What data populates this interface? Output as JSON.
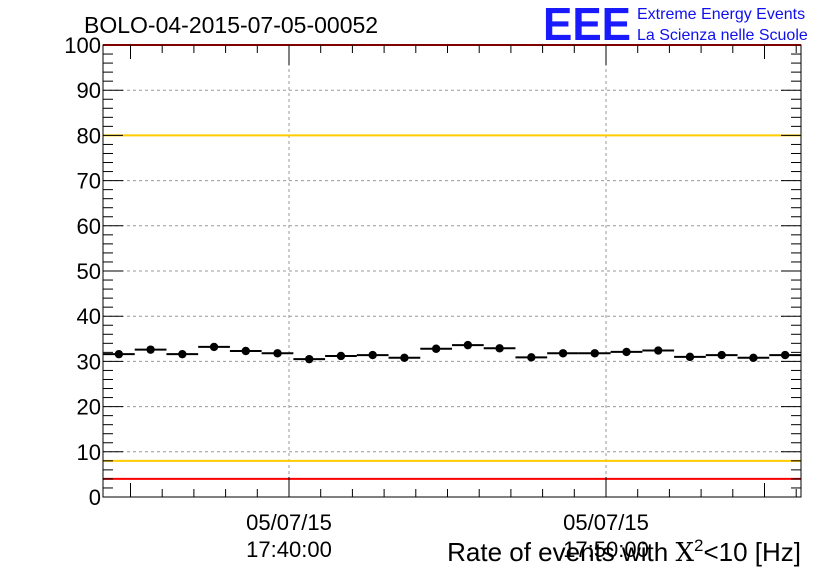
{
  "chart_data": {
    "type": "scatter",
    "title": "BOLO-04-2015-07-05-00052",
    "xlabel": "Rate of events with X²<10 [Hz]",
    "xlabel_parts": {
      "before": "Rate of events with ",
      "symbol": "X",
      "sup": "2",
      "after": "<10 [Hz]"
    },
    "ylim": [
      0,
      100
    ],
    "yticks": [
      "0",
      "10",
      "20",
      "30",
      "40",
      "50",
      "60",
      "70",
      "80",
      "90",
      "100"
    ],
    "xticks": [
      {
        "date": "05/07/15",
        "time": "17:40:00"
      },
      {
        "date": "05/07/15",
        "time": "17:50:00"
      }
    ],
    "grid": true,
    "reference_lines": [
      {
        "y": 100,
        "color": "#ff0000"
      },
      {
        "y": 80,
        "color": "#ffcc00"
      },
      {
        "y": 8,
        "color": "#ffcc00"
      },
      {
        "y": 4,
        "color": "#ff0000"
      }
    ],
    "series": [
      {
        "values": [
          31.6,
          32.6,
          31.6,
          33.2,
          32.3,
          31.8,
          30.5,
          31.2,
          31.4,
          30.8,
          32.8,
          33.6,
          32.9,
          30.9,
          31.8,
          31.8,
          32.1,
          32.4,
          31.0,
          31.4,
          30.8,
          31.4
        ]
      }
    ]
  },
  "logo": {
    "text": "EEE",
    "line1": "Extreme Energy Events",
    "line2": "La Scienza nelle Scuole",
    "color": "#1a1aff"
  },
  "colors": {
    "axis": "#000000",
    "grid": "#999999",
    "marker": "#000000"
  }
}
